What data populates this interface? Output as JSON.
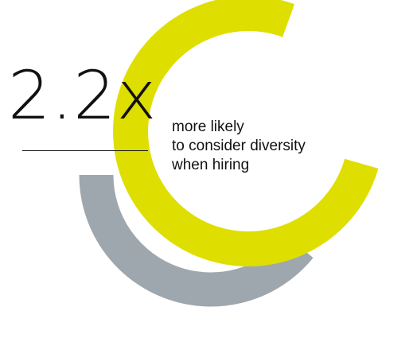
{
  "chart_data": {
    "type": "radial-bar",
    "headline_value": "2.2x",
    "caption_lines": [
      "more likely",
      "to consider diversity",
      "when hiring"
    ],
    "series": [
      {
        "values": [
          2.2
        ],
        "color": "#dede00"
      },
      {
        "values": [
          1.0
        ],
        "color": "#9ea7ad"
      }
    ]
  }
}
